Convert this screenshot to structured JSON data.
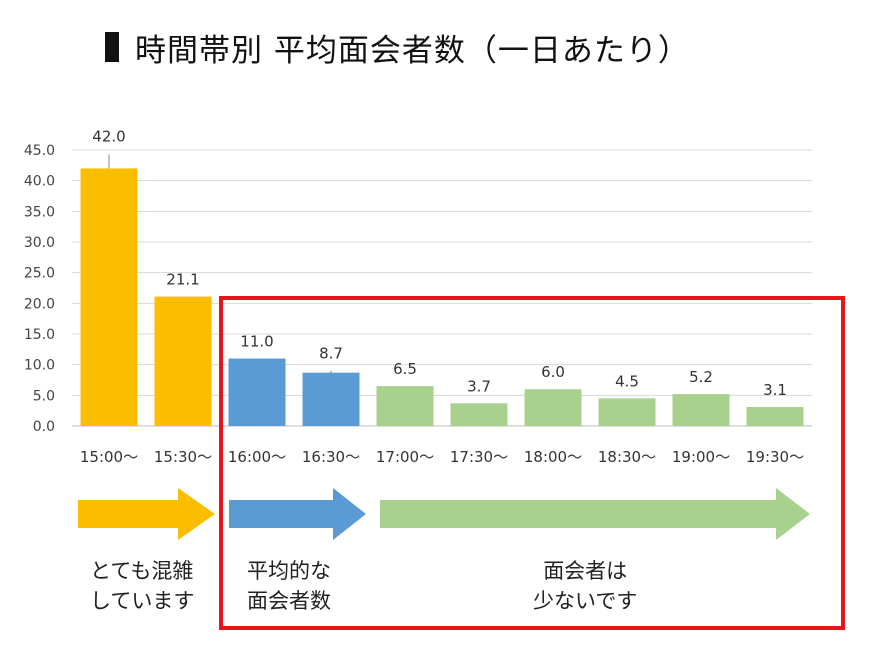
{
  "title": "時間帯別 平均面会者数（一日あたり）",
  "colors": {
    "busy": "#fbbd00",
    "average": "#5b9bd5",
    "few": "#a9d18e",
    "highlight": "#e8141b",
    "grid": "#d9d9d9",
    "text": "#222222"
  },
  "chart_data": {
    "type": "bar",
    "title": "時間帯別 平均面会者数（一日あたり）",
    "xlabel": "",
    "ylabel": "",
    "ylim": [
      0,
      45
    ],
    "yticks": [
      "0.0",
      "5.0",
      "10.0",
      "15.0",
      "20.0",
      "25.0",
      "30.0",
      "35.0",
      "40.0",
      "45.0"
    ],
    "grid": true,
    "categories": [
      "15:00〜",
      "15:30〜",
      "16:00〜",
      "16:30〜",
      "17:00〜",
      "17:30〜",
      "18:00〜",
      "18:30〜",
      "19:00〜",
      "19:30〜"
    ],
    "values": [
      42.0,
      21.1,
      11.0,
      8.7,
      6.5,
      3.7,
      6.0,
      4.5,
      5.2,
      3.1
    ],
    "value_labels": [
      "42.0",
      "21.1",
      "11.0",
      "8.7",
      "6.5",
      "3.7",
      "6.0",
      "4.5",
      "5.2",
      "3.1"
    ],
    "bar_colors": [
      "#fbbd00",
      "#fbbd00",
      "#5b9bd5",
      "#5b9bd5",
      "#a9d18e",
      "#a9d18e",
      "#a9d18e",
      "#a9d18e",
      "#a9d18e",
      "#a9d18e"
    ]
  },
  "annotations": {
    "busy": {
      "line1": "とても混雑",
      "line2": "しています"
    },
    "average": {
      "line1": "平均的な",
      "line2": "面会者数"
    },
    "few": {
      "line1": "面会者は",
      "line2": "少ないです"
    }
  }
}
